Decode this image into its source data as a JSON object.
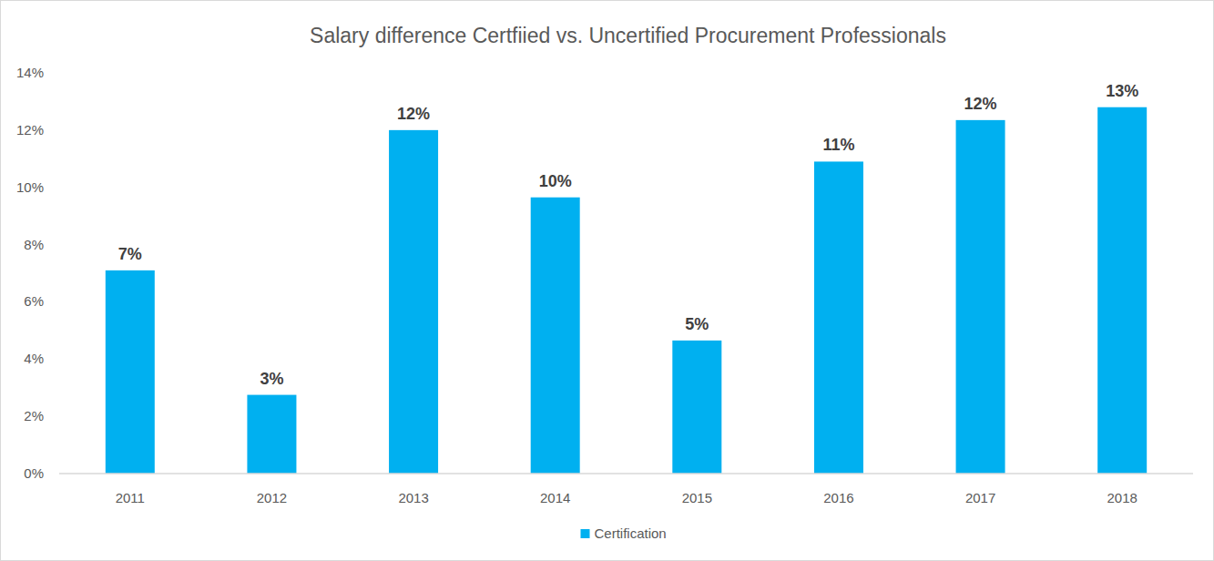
{
  "chart_data": {
    "type": "bar",
    "title": "Salary difference Certfiied vs. Uncertified Procurement Professionals",
    "categories": [
      "2011",
      "2012",
      "2013",
      "2014",
      "2015",
      "2016",
      "2017",
      "2018"
    ],
    "series": [
      {
        "name": "Certification",
        "color": "#00b0f0",
        "values": [
          7.1,
          2.75,
          12.0,
          9.65,
          4.65,
          10.9,
          12.35,
          12.8
        ],
        "value_labels": [
          "7%",
          "3%",
          "12%",
          "10%",
          "5%",
          "11%",
          "12%",
          "13%"
        ]
      }
    ],
    "ylim": [
      0,
      14
    ],
    "yticks": [
      {
        "value": 0,
        "label": "0%"
      },
      {
        "value": 2,
        "label": "2%"
      },
      {
        "value": 4,
        "label": "4%"
      },
      {
        "value": 6,
        "label": "6%"
      },
      {
        "value": 8,
        "label": "8%"
      },
      {
        "value": 10,
        "label": "10%"
      },
      {
        "value": 12,
        "label": "12%"
      },
      {
        "value": 14,
        "label": "14%"
      }
    ],
    "grid": false,
    "legend": "bottom",
    "data_labels": true
  }
}
